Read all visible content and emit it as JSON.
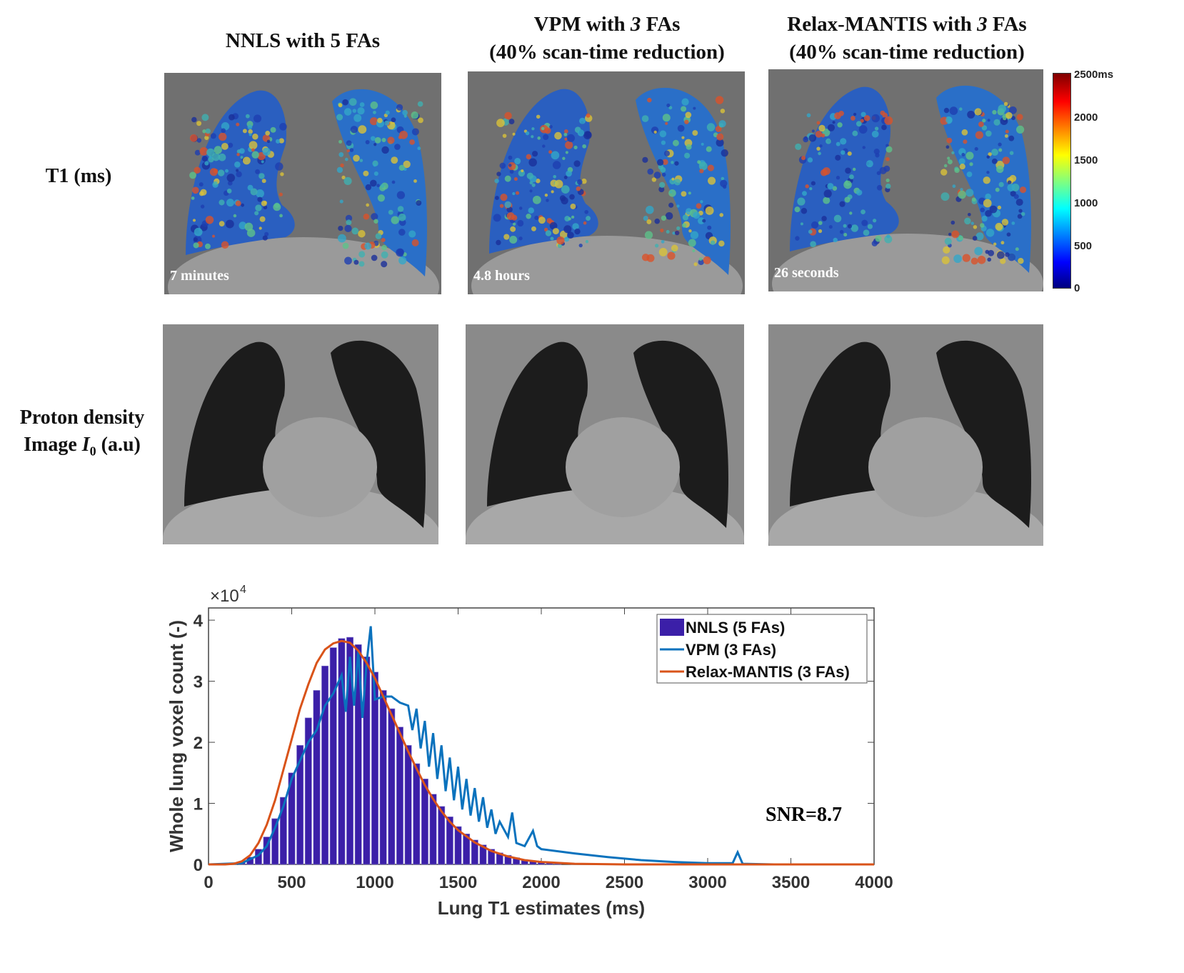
{
  "columns": [
    {
      "title_parts": [
        "NNLS with 5 FAs"
      ],
      "time": "7 minutes"
    },
    {
      "title_parts": [
        "VPM with ",
        "3",
        " FAs"
      ],
      "subtitle": "(40% scan-time reduction)",
      "time": "4.8 hours"
    },
    {
      "title_parts": [
        "Relax-MANTIS with ",
        "3",
        " FAs"
      ],
      "subtitle": "(40% scan-time reduction)",
      "time": "26 seconds"
    }
  ],
  "rows": {
    "t1": "T1 (ms)",
    "pd_line1": "Proton density",
    "pd_line2_pre": "Image ",
    "pd_var": "I",
    "pd_sub": "0",
    "pd_line2_post": " (a.u)"
  },
  "colorbar": {
    "labels": [
      "2500ms",
      "2000",
      "1500",
      "1000",
      "500",
      "0"
    ],
    "colormap": "jet",
    "range": [
      0,
      2500
    ]
  },
  "snr": "SNR=8.7",
  "chart_data": {
    "type": "bar+line",
    "xlabel": "Lung T1 estimates (ms)",
    "ylabel": "Whole lung voxel count (-)",
    "y_multiplier": "×10^4",
    "xlim": [
      0,
      4000
    ],
    "ylim": [
      0,
      4.2
    ],
    "xticks": [
      0,
      500,
      1000,
      1500,
      2000,
      2500,
      3000,
      3500,
      4000
    ],
    "yticks": [
      0,
      1,
      2,
      3,
      4
    ],
    "legend_position": "top-right",
    "series": [
      {
        "name": "NNLS (5 FAs)",
        "kind": "bar",
        "color": "#3b1fa8",
        "x": [
          150,
          200,
          250,
          300,
          350,
          400,
          450,
          500,
          550,
          600,
          650,
          700,
          750,
          800,
          850,
          900,
          950,
          1000,
          1050,
          1100,
          1150,
          1200,
          1250,
          1300,
          1350,
          1400,
          1450,
          1500,
          1550,
          1600,
          1650,
          1700,
          1750,
          1800,
          1850,
          1900,
          1950,
          2000,
          2050,
          2100,
          2200
        ],
        "y": [
          0.02,
          0.05,
          0.12,
          0.25,
          0.45,
          0.75,
          1.1,
          1.5,
          1.95,
          2.4,
          2.85,
          3.25,
          3.55,
          3.7,
          3.72,
          3.6,
          3.4,
          3.15,
          2.85,
          2.55,
          2.25,
          1.95,
          1.65,
          1.4,
          1.15,
          0.95,
          0.78,
          0.62,
          0.5,
          0.4,
          0.32,
          0.25,
          0.19,
          0.15,
          0.11,
          0.08,
          0.06,
          0.04,
          0.03,
          0.02,
          0.01
        ]
      },
      {
        "name": "VPM (3 FAs)",
        "kind": "line",
        "color": "#0a72bd",
        "x": [
          0,
          200,
          300,
          350,
          400,
          450,
          500,
          550,
          600,
          650,
          700,
          750,
          800,
          825,
          850,
          875,
          900,
          925,
          950,
          975,
          1000,
          1050,
          1100,
          1150,
          1200,
          1225,
          1250,
          1275,
          1300,
          1325,
          1350,
          1375,
          1400,
          1425,
          1450,
          1475,
          1500,
          1525,
          1550,
          1575,
          1600,
          1625,
          1650,
          1675,
          1700,
          1725,
          1750,
          1800,
          1825,
          1850,
          1900,
          1950,
          1975,
          2000,
          2200,
          2400,
          2600,
          2800,
          3000,
          3150,
          3180,
          3210,
          3400,
          4000
        ],
        "y": [
          0,
          0.02,
          0.15,
          0.3,
          0.6,
          0.95,
          1.4,
          1.7,
          2.0,
          2.2,
          2.6,
          2.8,
          3.1,
          2.5,
          3.4,
          2.6,
          3.5,
          2.4,
          3.3,
          3.9,
          2.7,
          2.75,
          2.75,
          2.65,
          2.6,
          2.2,
          2.55,
          1.9,
          2.35,
          1.6,
          2.15,
          1.4,
          1.95,
          1.2,
          1.75,
          1.05,
          1.6,
          0.9,
          1.4,
          0.8,
          1.25,
          0.7,
          1.1,
          0.6,
          0.9,
          0.5,
          0.7,
          0.45,
          0.85,
          0.35,
          0.3,
          0.55,
          0.3,
          0.25,
          0.18,
          0.12,
          0.07,
          0.04,
          0.02,
          0.02,
          0.2,
          0.01,
          0,
          0
        ]
      },
      {
        "name": "Relax-MANTIS (3 FAs)",
        "kind": "line",
        "color": "#d95319",
        "x": [
          0,
          100,
          150,
          200,
          250,
          300,
          350,
          400,
          450,
          500,
          550,
          600,
          650,
          700,
          750,
          800,
          850,
          900,
          950,
          1000,
          1050,
          1100,
          1150,
          1200,
          1250,
          1300,
          1350,
          1400,
          1450,
          1500,
          1600,
          1700,
          1800,
          1900,
          2000,
          2200,
          2500,
          4000
        ],
        "y": [
          0,
          0,
          0.01,
          0.05,
          0.15,
          0.35,
          0.65,
          1.05,
          1.55,
          2.05,
          2.55,
          2.95,
          3.3,
          3.52,
          3.62,
          3.66,
          3.63,
          3.5,
          3.3,
          3.05,
          2.75,
          2.45,
          2.15,
          1.85,
          1.57,
          1.3,
          1.07,
          0.87,
          0.7,
          0.56,
          0.36,
          0.22,
          0.13,
          0.07,
          0.04,
          0.01,
          0,
          0
        ]
      }
    ]
  }
}
